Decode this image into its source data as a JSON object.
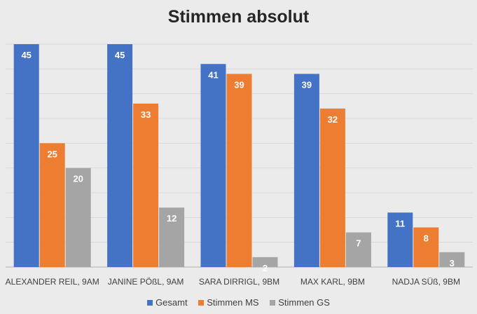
{
  "chart_data": {
    "type": "bar",
    "title": "Stimmen absolut",
    "categories": [
      "ALEXANDER REIL, 9AM",
      "JANINE PÖßL, 9AM",
      "SARA DIRRIGL, 9BM",
      "MAX KARL, 9BM",
      "NADJA SÜß, 9BM"
    ],
    "series": [
      {
        "name": "Gesamt",
        "color": "#4472c4",
        "values": [
          45,
          45,
          41,
          39,
          11
        ]
      },
      {
        "name": "Stimmen MS",
        "color": "#ed7d31",
        "values": [
          25,
          33,
          39,
          32,
          8
        ]
      },
      {
        "name": "Stimmen GS",
        "color": "#a5a5a5",
        "values": [
          20,
          12,
          2,
          7,
          3
        ]
      }
    ],
    "ylim": [
      0,
      45
    ],
    "grid": true,
    "data_labels": true,
    "legend_position": "bottom"
  }
}
